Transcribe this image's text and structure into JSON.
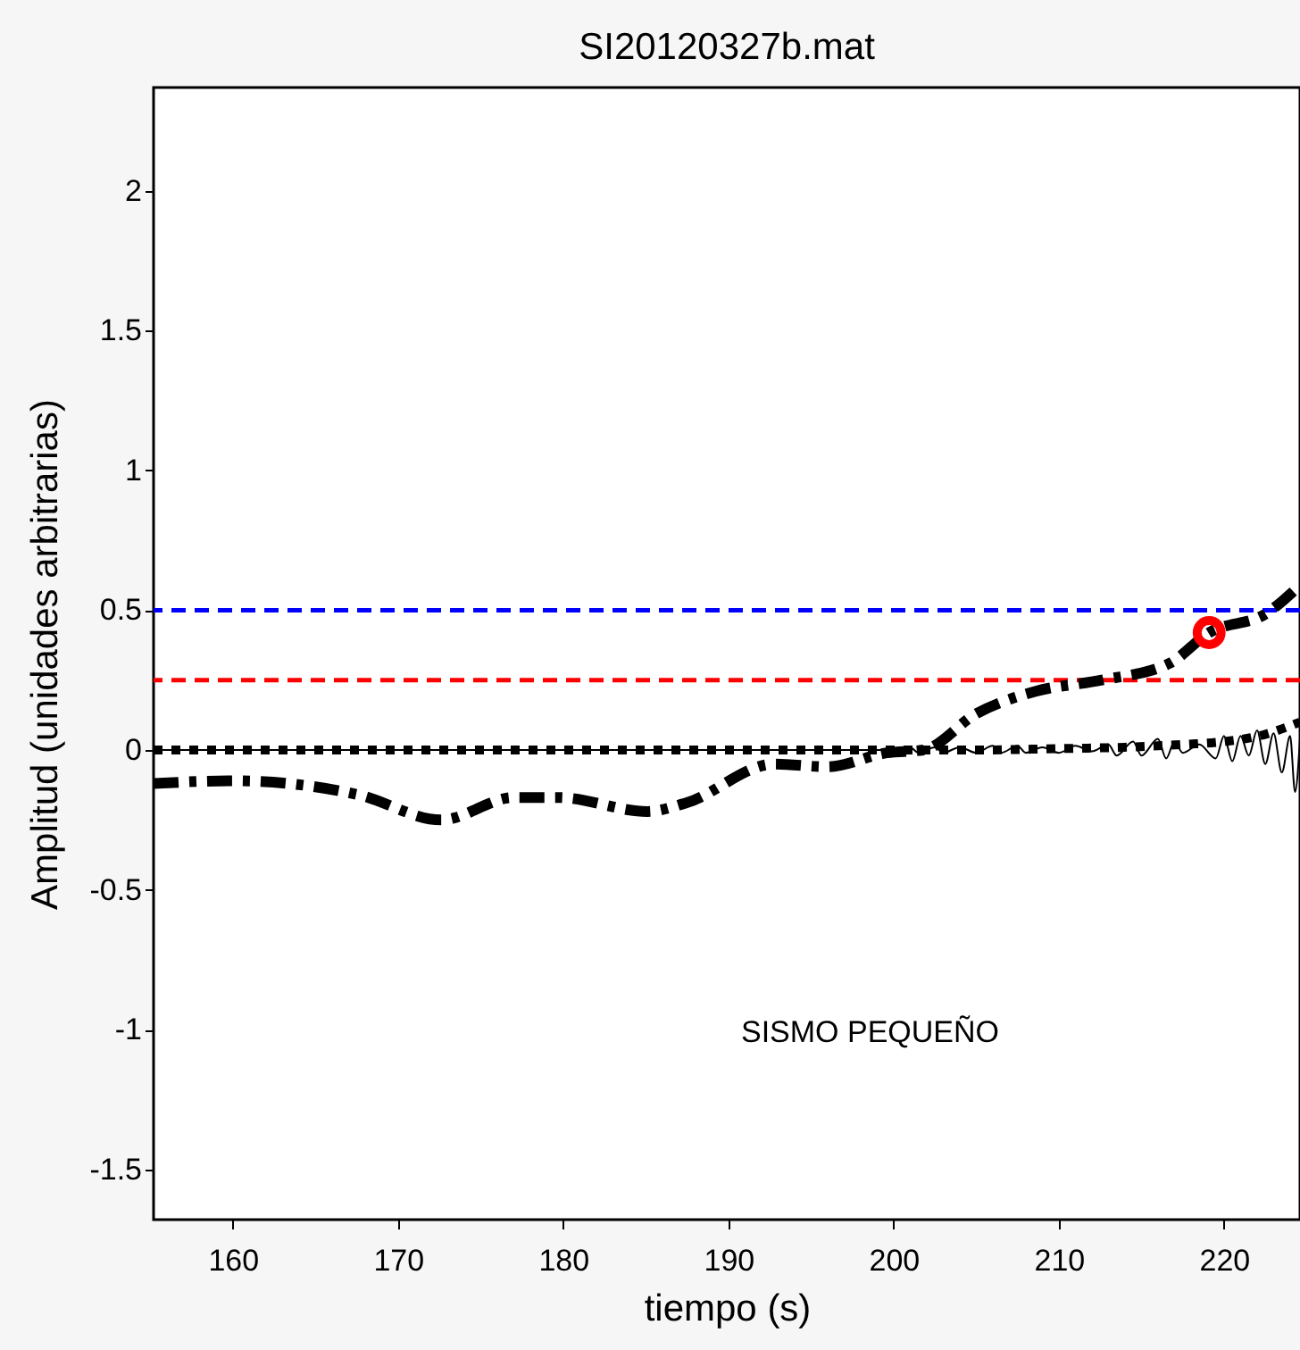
{
  "chart_data": {
    "type": "line",
    "title": "SI20120327b.mat",
    "xlabel": "tiempo (s)",
    "ylabel": "Amplitud (unidades arbitrarias)",
    "xlim": [
      155.2,
      224.6
    ],
    "ylim": [
      -1.68,
      2.37
    ],
    "xticks": [
      160,
      170,
      180,
      190,
      200,
      210,
      220
    ],
    "yticks": [
      -1.5,
      -1,
      -0.5,
      0,
      0.5,
      1,
      1.5,
      2
    ],
    "grid": false,
    "annotations": [
      "SISMO PEQUEÑO"
    ],
    "ref_lines": [
      {
        "axis": "y",
        "value": 0.5,
        "label": null,
        "color": "#0000ff",
        "line_style": "dashed"
      },
      {
        "axis": "y",
        "value": 0.25,
        "label": null,
        "color": "#ff0000",
        "line_style": "dashed"
      }
    ],
    "series": [
      {
        "color": "#000000",
        "line_style": "solid",
        "x": [
          155.2,
          200,
          201,
          201.5,
          202.5,
          203,
          204,
          205,
          206,
          206.5,
          207.5,
          208,
          209,
          210,
          211,
          212,
          213,
          213.5,
          214.5,
          215,
          216,
          216.5,
          217,
          217.5,
          218.5,
          219.5,
          220,
          220.5,
          221,
          221.5,
          222,
          222.5,
          223,
          223.5,
          224,
          224.3,
          224.6
        ],
        "values": [
          0,
          0,
          0.01,
          -0.01,
          0.01,
          -0.01,
          0.01,
          -0.01,
          0.015,
          -0.01,
          0.015,
          -0.01,
          0.01,
          -0.01,
          0.015,
          -0.005,
          0.02,
          -0.02,
          0.03,
          -0.02,
          0.04,
          -0.03,
          0.03,
          -0.01,
          0.02,
          -0.03,
          0.05,
          -0.04,
          0.05,
          -0.02,
          0.07,
          -0.05,
          0.06,
          -0.08,
          0.05,
          -0.15,
          0.04
        ]
      },
      {
        "color": "#000000",
        "line_style": "dotted",
        "x": [
          155.2,
          205,
          210,
          214,
          217.6,
          220,
          222.1,
          224.6
        ],
        "values": [
          0,
          0,
          0.005,
          0.01,
          0.02,
          0.03,
          0.05,
          0.1
        ]
      },
      {
        "color": "#000000",
        "line_style": "dashdot",
        "x": [
          155.2,
          160,
          167.6,
          172.6,
          177,
          179.7,
          185.1,
          187.4,
          192.8,
          196,
          199.6,
          201.8,
          205,
          208.6,
          212.6,
          216.7,
          219.1,
          222.6,
          224.6
        ],
        "values": [
          -0.12,
          -0.11,
          -0.16,
          -0.25,
          -0.17,
          -0.17,
          -0.22,
          -0.19,
          -0.05,
          -0.06,
          -0.01,
          0,
          0.13,
          0.21,
          0.25,
          0.31,
          0.42,
          0.49,
          0.59
        ]
      },
      {
        "type": "scatter",
        "color": "#ff0000",
        "marker": "circle",
        "x": [
          219.1
        ],
        "values": [
          0.42
        ]
      }
    ]
  }
}
